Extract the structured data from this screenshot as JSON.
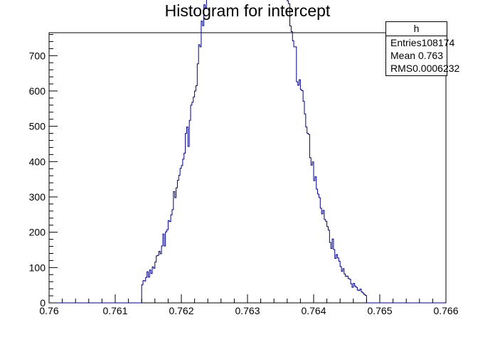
{
  "chart_data": {
    "type": "histogram",
    "title": "Histogram for intercept",
    "xlim": [
      0.76,
      0.766
    ],
    "ylim": [
      0,
      765
    ],
    "x_ticks": [
      "0.76",
      "0.761",
      "0.762",
      "0.763",
      "0.764",
      "0.765",
      "0.766"
    ],
    "y_ticks": [
      "0",
      "100",
      "200",
      "300",
      "400",
      "500",
      "600",
      "700"
    ],
    "line_color": "#000080",
    "distribution": {
      "entries": 108174,
      "mean": 0.763,
      "rms": 0.0006232,
      "bin_width": 2e-05,
      "range": [
        0.7614,
        0.7648
      ],
      "noise_seed": 7
    }
  },
  "stats_box": {
    "name": "h",
    "rows": [
      {
        "label": "Entries",
        "value": "108174"
      },
      {
        "label": "Mean",
        "value": "0.763"
      },
      {
        "label": "RMS",
        "value": "0.0006232"
      }
    ]
  }
}
